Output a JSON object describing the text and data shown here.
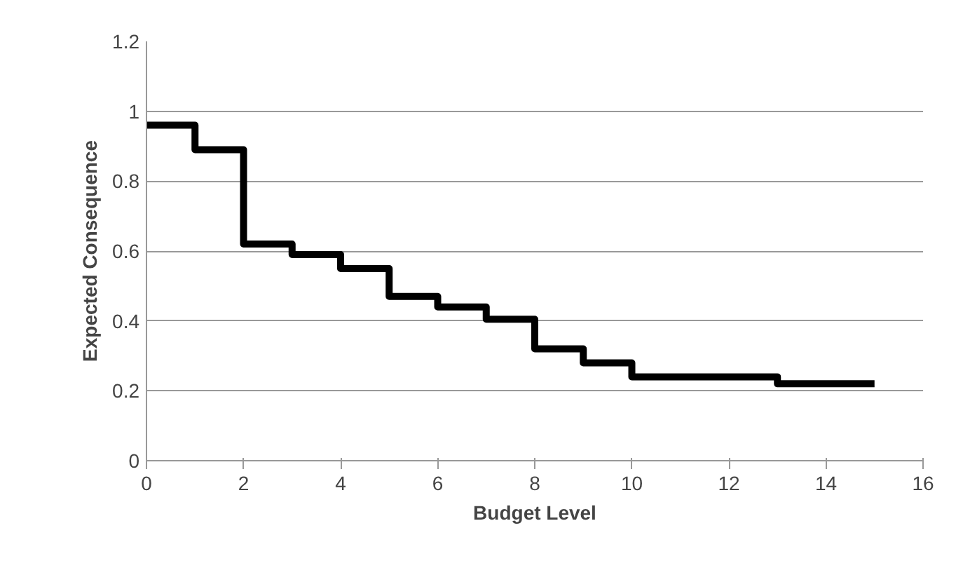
{
  "chart_data": {
    "type": "step",
    "xlabel": "Budget Level",
    "ylabel": "Expected Consequence",
    "x": [
      0,
      1,
      2,
      3,
      4,
      5,
      6,
      7,
      8,
      9,
      10,
      13,
      15
    ],
    "series": [
      {
        "color": "#000000",
        "values": [
          0.96,
          0.89,
          0.62,
          0.59,
          0.55,
          0.47,
          0.44,
          0.405,
          0.32,
          0.28,
          0.24,
          0.22,
          0.22
        ]
      }
    ],
    "xlim": [
      0,
      16
    ],
    "xticks": [
      0,
      2,
      4,
      6,
      8,
      10,
      12,
      14,
      16
    ],
    "ylim": [
      0,
      1.2
    ],
    "yticks": [
      0,
      0.2,
      0.4,
      0.6,
      0.8,
      1,
      1.2
    ],
    "grid": "y"
  }
}
